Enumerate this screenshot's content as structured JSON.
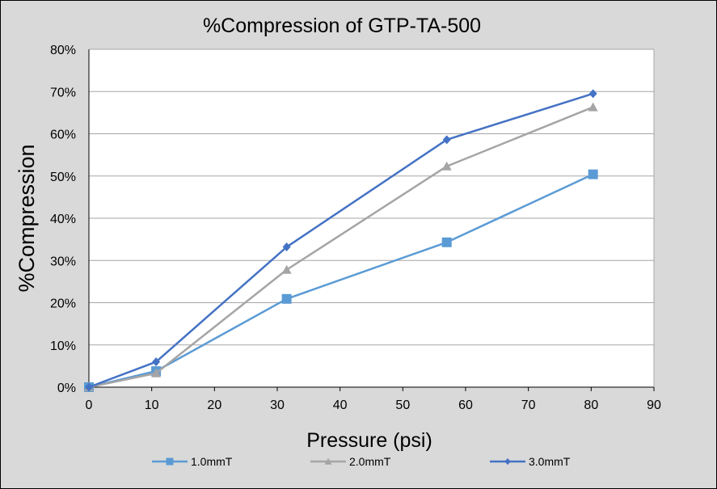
{
  "chart_data": {
    "type": "line",
    "title": "%Compression of GTP-TA-500",
    "xlabel": "Pressure (psi)",
    "ylabel": "%Compression",
    "xlim": [
      0,
      90
    ],
    "ylim": [
      0,
      0.8
    ],
    "x_ticks": [
      "0",
      "10",
      "20",
      "30",
      "40",
      "50",
      "60",
      "70",
      "80",
      "90"
    ],
    "y_ticks": [
      "0%",
      "10%",
      "20%",
      "30%",
      "40%",
      "50%",
      "60%",
      "70%",
      "80%"
    ],
    "grid": "horizontal",
    "legend_position": "bottom",
    "series": [
      {
        "name": "1.0mmT",
        "color": "#5b9bd5",
        "marker": "square",
        "x": [
          0,
          10.7,
          31.5,
          57,
          80.3
        ],
        "y": [
          0.0,
          0.038,
          0.209,
          0.343,
          0.504
        ]
      },
      {
        "name": "2.0mmT",
        "color": "#a5a5a5",
        "marker": "triangle",
        "x": [
          0,
          10.7,
          31.5,
          57,
          80.3
        ],
        "y": [
          0.0,
          0.033,
          0.278,
          0.523,
          0.663
        ]
      },
      {
        "name": "3.0mmT",
        "color": "#4472c4",
        "marker": "diamond",
        "x": [
          0,
          10.7,
          31.5,
          57,
          80.3
        ],
        "y": [
          0.0,
          0.06,
          0.332,
          0.586,
          0.695
        ]
      }
    ]
  }
}
